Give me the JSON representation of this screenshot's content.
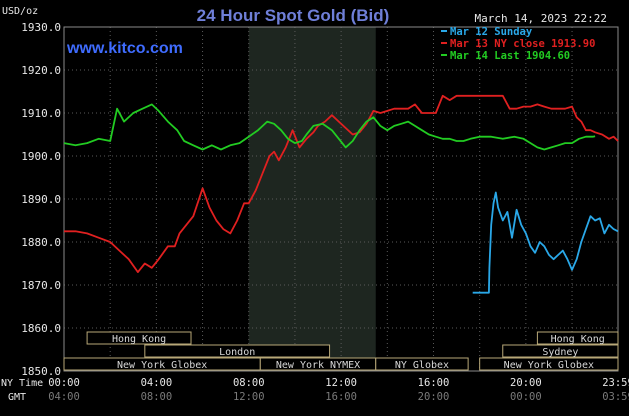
{
  "chart_data": {
    "type": "line",
    "title": "24 Hour Spot Gold (Bid)",
    "source": "www.kitco.com",
    "timestamp": "March 14, 2023 22:22",
    "ylabel": "USD/oz",
    "ylim": [
      1850,
      1930
    ],
    "yticks": [
      "1930.0",
      "1920.0",
      "1910.0",
      "1900.0",
      "1890.0",
      "1880.0",
      "1870.0",
      "1860.0",
      "1850.0"
    ],
    "x_axis_labels": {
      "ny_time_label": "NY Time",
      "gmt_label": "GMT",
      "ny_time": [
        "00:00",
        "04:00",
        "08:00",
        "12:00",
        "16:00",
        "20:00",
        "23:59"
      ],
      "gmt": [
        "04:00",
        "08:00",
        "12:00",
        "16:00",
        "20:00",
        "00:00",
        "03:59"
      ]
    },
    "grid": true,
    "shaded_period": "08:00-13:30 NY time",
    "markets": [
      {
        "name": "Hong Kong",
        "row": 1,
        "start": 1.0,
        "end": 5.5
      },
      {
        "name": "London",
        "row": 2,
        "start": 3.5,
        "end": 11.5
      },
      {
        "name": "New York Globex",
        "row": 3,
        "start": 0.0,
        "end": 8.5
      },
      {
        "name": "New York NYMEX",
        "row": 3,
        "start": 8.5,
        "end": 13.5
      },
      {
        "name": "NY Globex",
        "row": 3,
        "start": 13.5,
        "end": 17.5
      },
      {
        "name": "Hong Kong",
        "row": 1,
        "start": 20.5,
        "end": 23.99
      },
      {
        "name": "Sydney",
        "row": 2,
        "start": 19.0,
        "end": 23.99
      },
      {
        "name": "New York Globex",
        "row": 3,
        "start": 18.0,
        "end": 23.99
      }
    ],
    "series": [
      {
        "name": "Mar 12 Sunday",
        "color": "#2aa8e8",
        "points": [
          [
            17.7,
            1868.2
          ],
          [
            18.4,
            1868.2
          ],
          [
            18.42,
            1874
          ],
          [
            18.5,
            1884
          ],
          [
            18.6,
            1889
          ],
          [
            18.7,
            1891.5
          ],
          [
            18.8,
            1888
          ],
          [
            19.0,
            1885
          ],
          [
            19.2,
            1887
          ],
          [
            19.4,
            1881
          ],
          [
            19.6,
            1887.5
          ],
          [
            19.8,
            1884
          ],
          [
            20.0,
            1882
          ],
          [
            20.2,
            1879
          ],
          [
            20.4,
            1877.5
          ],
          [
            20.6,
            1880
          ],
          [
            20.8,
            1879
          ],
          [
            21.0,
            1877
          ],
          [
            21.2,
            1876
          ],
          [
            21.4,
            1877
          ],
          [
            21.6,
            1878
          ],
          [
            21.8,
            1876
          ],
          [
            22.0,
            1873.5
          ],
          [
            22.2,
            1876
          ],
          [
            22.4,
            1880
          ],
          [
            22.6,
            1883
          ],
          [
            22.8,
            1886
          ],
          [
            23.0,
            1885
          ],
          [
            23.2,
            1885.5
          ],
          [
            23.4,
            1882
          ],
          [
            23.6,
            1884
          ],
          [
            23.8,
            1883
          ],
          [
            23.99,
            1882.5
          ]
        ]
      },
      {
        "name": "Mar 13 NY close 1913.90",
        "color": "#e02020",
        "points": [
          [
            0.0,
            1882.5
          ],
          [
            0.5,
            1882.5
          ],
          [
            1.0,
            1882
          ],
          [
            1.5,
            1881
          ],
          [
            2.0,
            1880
          ],
          [
            2.4,
            1878
          ],
          [
            2.8,
            1876
          ],
          [
            3.2,
            1873
          ],
          [
            3.5,
            1875
          ],
          [
            3.8,
            1874
          ],
          [
            4.1,
            1876
          ],
          [
            4.5,
            1879
          ],
          [
            4.8,
            1879
          ],
          [
            5.0,
            1882
          ],
          [
            5.3,
            1884
          ],
          [
            5.6,
            1886
          ],
          [
            6.0,
            1892.5
          ],
          [
            6.3,
            1888
          ],
          [
            6.6,
            1885
          ],
          [
            6.9,
            1883
          ],
          [
            7.2,
            1882
          ],
          [
            7.5,
            1885
          ],
          [
            7.8,
            1889
          ],
          [
            8.0,
            1889
          ],
          [
            8.3,
            1892
          ],
          [
            8.6,
            1896
          ],
          [
            8.9,
            1900
          ],
          [
            9.1,
            1901
          ],
          [
            9.3,
            1899
          ],
          [
            9.6,
            1902
          ],
          [
            9.9,
            1906
          ],
          [
            10.2,
            1902
          ],
          [
            10.5,
            1904
          ],
          [
            10.8,
            1905.5
          ],
          [
            11.0,
            1907
          ],
          [
            11.3,
            1908
          ],
          [
            11.6,
            1909.5
          ],
          [
            11.9,
            1908
          ],
          [
            12.2,
            1906.5
          ],
          [
            12.5,
            1905
          ],
          [
            12.8,
            1905.5
          ],
          [
            13.1,
            1907.5
          ],
          [
            13.4,
            1910.5
          ],
          [
            13.7,
            1910
          ],
          [
            14.0,
            1910.5
          ],
          [
            14.3,
            1911
          ],
          [
            14.6,
            1911
          ],
          [
            14.9,
            1911
          ],
          [
            15.2,
            1912
          ],
          [
            15.5,
            1910
          ],
          [
            15.8,
            1910
          ],
          [
            16.1,
            1910
          ],
          [
            16.4,
            1914
          ],
          [
            16.7,
            1913
          ],
          [
            17.0,
            1914
          ],
          [
            17.3,
            1914
          ],
          [
            17.6,
            1914
          ],
          [
            17.9,
            1914
          ],
          [
            18.2,
            1914
          ],
          [
            18.5,
            1914
          ],
          [
            18.8,
            1914
          ],
          [
            19.0,
            1914
          ],
          [
            19.3,
            1911
          ],
          [
            19.6,
            1911
          ],
          [
            19.9,
            1911.5
          ],
          [
            20.2,
            1911.5
          ],
          [
            20.5,
            1912
          ],
          [
            20.8,
            1911.5
          ],
          [
            21.1,
            1911
          ],
          [
            21.4,
            1911
          ],
          [
            21.7,
            1911
          ],
          [
            22.0,
            1911.5
          ],
          [
            22.2,
            1909
          ],
          [
            22.4,
            1908
          ],
          [
            22.6,
            1906
          ],
          [
            22.8,
            1906
          ],
          [
            23.0,
            1905.5
          ],
          [
            23.3,
            1905
          ],
          [
            23.6,
            1904
          ],
          [
            23.8,
            1904.5
          ],
          [
            23.99,
            1903.5
          ]
        ]
      },
      {
        "name": "Mar 14 Last 1904.60",
        "color": "#22cc22",
        "points": [
          [
            0.0,
            1903
          ],
          [
            0.5,
            1902.5
          ],
          [
            1.0,
            1903
          ],
          [
            1.5,
            1904
          ],
          [
            2.0,
            1903.5
          ],
          [
            2.3,
            1911
          ],
          [
            2.6,
            1908
          ],
          [
            3.0,
            1910
          ],
          [
            3.4,
            1911
          ],
          [
            3.8,
            1912
          ],
          [
            4.1,
            1910.5
          ],
          [
            4.5,
            1908
          ],
          [
            4.9,
            1906
          ],
          [
            5.2,
            1903.5
          ],
          [
            5.6,
            1902.5
          ],
          [
            6.0,
            1901.5
          ],
          [
            6.4,
            1902.5
          ],
          [
            6.8,
            1901.5
          ],
          [
            7.2,
            1902.5
          ],
          [
            7.6,
            1903
          ],
          [
            8.0,
            1904.5
          ],
          [
            8.4,
            1906
          ],
          [
            8.8,
            1908
          ],
          [
            9.1,
            1907.5
          ],
          [
            9.4,
            1906
          ],
          [
            9.7,
            1904
          ],
          [
            10.0,
            1903
          ],
          [
            10.3,
            1903.5
          ],
          [
            10.5,
            1905
          ],
          [
            10.8,
            1907
          ],
          [
            11.2,
            1907.5
          ],
          [
            11.6,
            1906
          ],
          [
            11.9,
            1904
          ],
          [
            12.2,
            1902
          ],
          [
            12.5,
            1903.5
          ],
          [
            12.8,
            1906
          ],
          [
            13.1,
            1908
          ],
          [
            13.4,
            1909
          ],
          [
            13.7,
            1907
          ],
          [
            14.0,
            1906
          ],
          [
            14.3,
            1907
          ],
          [
            14.6,
            1907.5
          ],
          [
            14.9,
            1908
          ],
          [
            15.2,
            1907
          ],
          [
            15.5,
            1906
          ],
          [
            15.8,
            1905
          ],
          [
            16.1,
            1904.5
          ],
          [
            16.4,
            1904
          ],
          [
            16.7,
            1904
          ],
          [
            17.0,
            1903.5
          ],
          [
            17.3,
            1903.5
          ],
          [
            17.6,
            1904
          ],
          [
            18.0,
            1904.5
          ],
          [
            18.5,
            1904.5
          ],
          [
            19.0,
            1904
          ],
          [
            19.5,
            1904.5
          ],
          [
            19.9,
            1904
          ],
          [
            20.2,
            1903
          ],
          [
            20.5,
            1902
          ],
          [
            20.8,
            1901.5
          ],
          [
            21.1,
            1902
          ],
          [
            21.4,
            1902.5
          ],
          [
            21.7,
            1903
          ],
          [
            22.0,
            1903
          ],
          [
            22.3,
            1904
          ],
          [
            22.6,
            1904.5
          ],
          [
            22.9,
            1904.5
          ],
          [
            23.0,
            1904.6
          ]
        ]
      }
    ]
  }
}
